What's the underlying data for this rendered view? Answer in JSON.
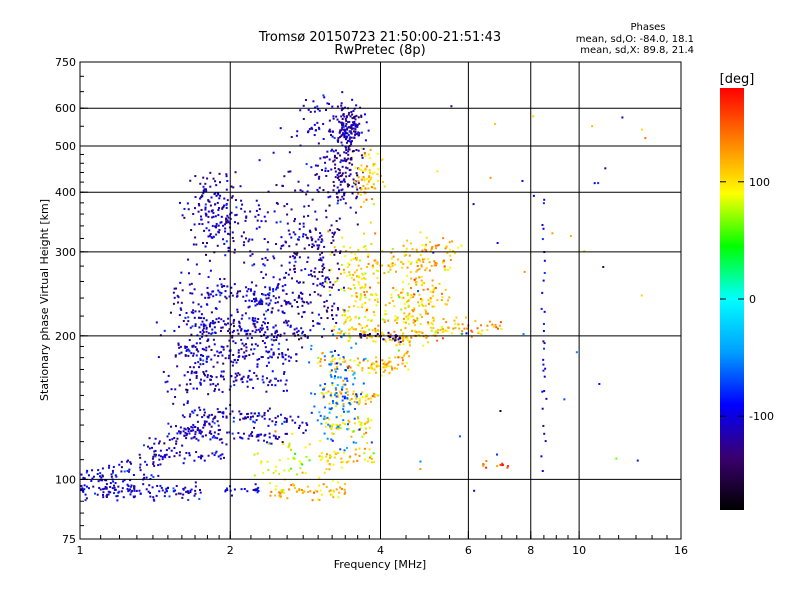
{
  "chart_data": {
    "type": "scatter",
    "title": "Tromsø 20150723 21:50:00-21:51:43",
    "subtitle": "RwPretec (8p)",
    "xlabel": "Frequency [MHz]",
    "ylabel": "Stationary phase Virtual Height [km]",
    "x_scale": "log",
    "y_scale": "log",
    "xlim": [
      1,
      16
    ],
    "ylim": [
      75,
      750
    ],
    "x_ticks": [
      1,
      2,
      4,
      6,
      8,
      10,
      16
    ],
    "y_ticks": [
      75,
      100,
      200,
      300,
      400,
      500,
      600,
      750
    ],
    "x_grid": [
      2,
      4,
      6,
      8,
      10
    ],
    "y_grid": [
      100,
      200,
      300,
      400,
      500,
      600
    ],
    "grid": true,
    "stats": {
      "title": "Phases",
      "line1": "mean, sd,O: -84.0, 18.1",
      "line2": "mean, sd,X: 89.8, 21.4"
    },
    "colorbar": {
      "label": "[deg]",
      "range": [
        -180,
        180
      ],
      "ticks": [
        100,
        0,
        -100
      ],
      "colors": [
        "#000000",
        "#3a0070",
        "#0000ff",
        "#00a0ff",
        "#00ffff",
        "#00ff00",
        "#ffff00",
        "#ff8000",
        "#ff0000"
      ]
    },
    "series": [
      {
        "shape": "trace",
        "x0": 1.0,
        "x1": 1.75,
        "y0": 94,
        "y1": 95,
        "wobble": 2,
        "phase": -105,
        "n": 120
      },
      {
        "shape": "trace",
        "x0": 1.0,
        "x1": 1.45,
        "y0": 100,
        "y1": 104,
        "wobble": 3,
        "phase": -95,
        "n": 50
      },
      {
        "shape": "trace",
        "x0": 1.1,
        "x1": 1.9,
        "y0": 100,
        "y1": 135,
        "wobble": 4,
        "phase": -110,
        "n": 90
      },
      {
        "shape": "trace",
        "x0": 1.4,
        "x1": 1.95,
        "y0": 112,
        "y1": 112,
        "wobble": 2,
        "phase": -110,
        "n": 50
      },
      {
        "shape": "trace",
        "x0": 1.55,
        "x1": 2.6,
        "y0": 125,
        "y1": 122,
        "wobble": 2,
        "phase": -108,
        "n": 80
      },
      {
        "shape": "trace",
        "x0": 1.6,
        "x1": 2.9,
        "y0": 140,
        "y1": 130,
        "wobble": 3,
        "phase": -105,
        "n": 90
      },
      {
        "shape": "trace",
        "x0": 1.6,
        "x1": 2.6,
        "y0": 165,
        "y1": 160,
        "wobble": 4,
        "phase": -110,
        "n": 70
      },
      {
        "shape": "trace",
        "x0": 1.55,
        "x1": 2.8,
        "y0": 185,
        "y1": 180,
        "wobble": 4,
        "phase": -112,
        "n": 80
      },
      {
        "shape": "trace",
        "x0": 1.7,
        "x1": 2.9,
        "y0": 215,
        "y1": 200,
        "wobble": 5,
        "phase": -115,
        "n": 80
      },
      {
        "shape": "trace",
        "x0": 1.8,
        "x1": 2.9,
        "y0": 250,
        "y1": 235,
        "wobble": 6,
        "phase": -112,
        "n": 70
      },
      {
        "shape": "trace",
        "x0": 2.4,
        "x1": 3.4,
        "y0": 95,
        "y1": 94,
        "wobble": 2,
        "phase": 115,
        "n": 60
      },
      {
        "shape": "trace",
        "x0": 1.95,
        "x1": 2.3,
        "y0": 95,
        "y1": 96,
        "wobble": 1,
        "phase": -100,
        "n": 20
      },
      {
        "shape": "trace",
        "x0": 3.0,
        "x1": 3.9,
        "y0": 110,
        "y1": 112,
        "wobble": 3,
        "phase": 105,
        "n": 50
      },
      {
        "shape": "trace",
        "x0": 3.1,
        "x1": 3.9,
        "y0": 130,
        "y1": 128,
        "wobble": 3,
        "phase": 100,
        "n": 50
      },
      {
        "shape": "trace",
        "x0": 3.0,
        "x1": 4.0,
        "y0": 150,
        "y1": 148,
        "wobble": 4,
        "phase": 110,
        "n": 60
      },
      {
        "shape": "trace",
        "x0": 3.0,
        "x1": 4.3,
        "y0": 178,
        "y1": 172,
        "wobble": 4,
        "phase": 110,
        "n": 70
      },
      {
        "shape": "trace",
        "x0": 3.2,
        "x1": 4.6,
        "y0": 205,
        "y1": 198,
        "wobble": 5,
        "phase": 105,
        "n": 80
      },
      {
        "shape": "trace",
        "x0": 3.3,
        "x1": 5.2,
        "y0": 220,
        "y1": 215,
        "wobble": 6,
        "phase": 100,
        "n": 80
      },
      {
        "shape": "trace",
        "x0": 3.5,
        "x1": 5.5,
        "y0": 245,
        "y1": 240,
        "wobble": 6,
        "phase": 108,
        "n": 60
      },
      {
        "shape": "trace",
        "x0": 3.8,
        "x1": 5.6,
        "y0": 280,
        "y1": 285,
        "wobble": 6,
        "phase": 112,
        "n": 50
      },
      {
        "shape": "trace",
        "x0": 4.2,
        "x1": 5.9,
        "y0": 305,
        "y1": 310,
        "wobble": 5,
        "phase": 115,
        "n": 40
      },
      {
        "shape": "trace",
        "x0": 4.0,
        "x1": 4.6,
        "y0": 175,
        "y1": 180,
        "wobble": 4,
        "phase": 120,
        "n": 30
      },
      {
        "shape": "trace",
        "x0": 4.5,
        "x1": 6.0,
        "y0": 198,
        "y1": 215,
        "wobble": 5,
        "phase": 115,
        "n": 50
      },
      {
        "shape": "trace",
        "x0": 5.6,
        "x1": 7.0,
        "y0": 205,
        "y1": 210,
        "wobble": 4,
        "phase": 120,
        "n": 25
      },
      {
        "shape": "trace",
        "x0": 6.4,
        "x1": 7.3,
        "y0": 107,
        "y1": 107,
        "wobble": 1,
        "phase": 150,
        "n": 12
      },
      {
        "shape": "trace",
        "x0": 3.6,
        "x1": 4.4,
        "y0": 200,
        "y1": 198,
        "wobble": 2,
        "phase": -130,
        "n": 30
      },
      {
        "shape": "cloud",
        "cx": 1.9,
        "cy": 360,
        "sx": 0.08,
        "sy": 0.1,
        "phase": -110,
        "n": 180
      },
      {
        "shape": "cloud",
        "cx": 1.75,
        "cy": 200,
        "sx": 0.09,
        "sy": 0.17,
        "phase": -110,
        "n": 200
      },
      {
        "shape": "cloud",
        "cx": 2.3,
        "cy": 230,
        "sx": 0.07,
        "sy": 0.2,
        "phase": -105,
        "n": 160
      },
      {
        "shape": "cloud",
        "cx": 2.7,
        "cy": 330,
        "sx": 0.06,
        "sy": 0.22,
        "phase": -115,
        "n": 120
      },
      {
        "shape": "cloud",
        "cx": 3.05,
        "cy": 280,
        "sx": 0.05,
        "sy": 0.2,
        "phase": -120,
        "n": 130
      },
      {
        "shape": "cloud",
        "cx": 3.45,
        "cy": 550,
        "sx": 0.035,
        "sy": 0.06,
        "phase": -115,
        "n": 150
      },
      {
        "shape": "cloud",
        "cx": 3.4,
        "cy": 440,
        "sx": 0.04,
        "sy": 0.09,
        "phase": -120,
        "n": 110
      },
      {
        "shape": "cloud",
        "cx": 3.1,
        "cy": 520,
        "sx": 0.05,
        "sy": 0.12,
        "phase": -100,
        "n": 60
      },
      {
        "shape": "cloud",
        "cx": 3.8,
        "cy": 430,
        "sx": 0.03,
        "sy": 0.07,
        "phase": 110,
        "n": 70
      },
      {
        "shape": "cloud",
        "cx": 3.6,
        "cy": 280,
        "sx": 0.05,
        "sy": 0.1,
        "phase": 100,
        "n": 90
      },
      {
        "shape": "cloud",
        "cx": 3.3,
        "cy": 150,
        "sx": 0.06,
        "sy": 0.14,
        "phase": -60,
        "n": 120
      },
      {
        "shape": "cloud",
        "cx": 4.8,
        "cy": 240,
        "sx": 0.05,
        "sy": 0.12,
        "phase": 115,
        "n": 80
      },
      {
        "shape": "cloud",
        "cx": 2.6,
        "cy": 110,
        "sx": 0.07,
        "sy": 0.07,
        "phase": 90,
        "n": 50
      },
      {
        "shape": "column",
        "x": 8.5,
        "y0": 100,
        "y1": 410,
        "phase": -100,
        "n": 30
      },
      {
        "shape": "sparse",
        "x0": 4.0,
        "x1": 14.0,
        "y0": 90,
        "y1": 680,
        "phase": 60,
        "n": 40
      }
    ]
  }
}
